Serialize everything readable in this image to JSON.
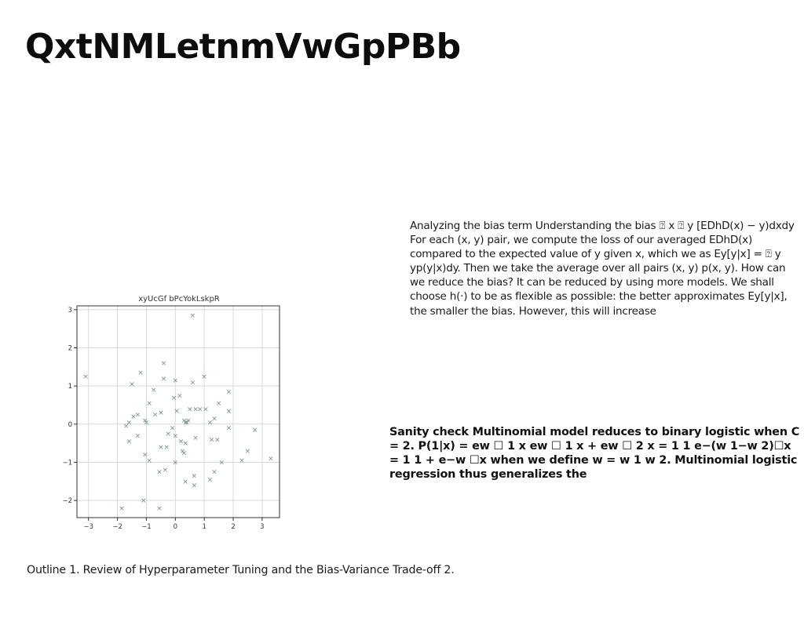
{
  "title": "QxtNMLetnmVwGpPBb",
  "paragraph_light": "Analyzing the bias term Understanding the bias ⍰ x ⍰ y [EDhD(x) − y)dxdy For each (x, y) pair, we compute the loss of our averaged EDhD(x) compared to the expected value of y given x, which we as Ey[y|x] = ⍰ y yp(y|x)dy. Then we take the average over all pairs (x, y) p(x, y). How can we reduce the bias? It can be reduced by using more models. We shall choose h(·) to be as flexible as possible: the better approximates Ey[y|x], the smaller the bias. However, this will increase",
  "paragraph_bold": "Sanity check Multinomial model reduces to binary logistic when C = 2. P(1|x) = ew ☐ 1 x ew ☐ 1 x + ew ☐ 2 x = 1 1 e−(w 1−w 2)☐x = 1 1 + e−w ☐x when we define w = w 1 w 2. Multinomial logistic regression thus generalizes the",
  "outline": "Outline 1. Review of Hyperparameter Tuning and the Bias-Variance Trade-off 2.",
  "chart_data": {
    "type": "scatter",
    "title": "xyUcGf bPcYokLskpR",
    "xlabel": "",
    "ylabel": "",
    "xlim": [
      -3.4,
      3.6
    ],
    "ylim": [
      -2.45,
      3.1
    ],
    "xticks": [
      -3,
      -2,
      -1,
      0,
      1,
      2,
      3
    ],
    "yticks": [
      -2,
      -1,
      0,
      1,
      2,
      3
    ],
    "grid": true,
    "marker": "x",
    "marker_color": "#6f8f80",
    "points": [
      [
        0.6,
        2.85
      ],
      [
        -0.4,
        1.6
      ],
      [
        -3.1,
        1.25
      ],
      [
        -1.2,
        1.35
      ],
      [
        -1.5,
        1.05
      ],
      [
        -0.4,
        1.2
      ],
      [
        0,
        1.15
      ],
      [
        0.6,
        1.1
      ],
      [
        1,
        1.25
      ],
      [
        1.85,
        0.85
      ],
      [
        -0.75,
        0.9
      ],
      [
        0.15,
        0.75
      ],
      [
        -0.05,
        0.7
      ],
      [
        1.5,
        0.55
      ],
      [
        -0.9,
        0.55
      ],
      [
        -0.5,
        0.3
      ],
      [
        0.05,
        0.35
      ],
      [
        0.5,
        0.4
      ],
      [
        0.7,
        0.4
      ],
      [
        0.85,
        0.4
      ],
      [
        1.05,
        0.4
      ],
      [
        1.85,
        0.35
      ],
      [
        -1.45,
        0.2
      ],
      [
        -1.3,
        0.25
      ],
      [
        -0.7,
        0.25
      ],
      [
        1.35,
        0.15
      ],
      [
        -1.05,
        0.1
      ],
      [
        -1,
        0.05
      ],
      [
        0.3,
        0.1
      ],
      [
        0.4,
        0.05
      ],
      [
        -1.6,
        0.05
      ],
      [
        -1.7,
        -0.05
      ],
      [
        0.45,
        0.1
      ],
      [
        0.35,
        0.05
      ],
      [
        -0.1,
        -0.1
      ],
      [
        1.2,
        0.05
      ],
      [
        1.85,
        -0.1
      ],
      [
        2.75,
        -0.15
      ],
      [
        -1.3,
        -0.3
      ],
      [
        -0.25,
        -0.25
      ],
      [
        0,
        -0.3
      ],
      [
        0.2,
        -0.45
      ],
      [
        0.35,
        -0.5
      ],
      [
        0.7,
        -0.35
      ],
      [
        1.25,
        -0.4
      ],
      [
        1.45,
        -0.4
      ],
      [
        -1.6,
        -0.45
      ],
      [
        -0.5,
        -0.6
      ],
      [
        -0.3,
        -0.6
      ],
      [
        0.25,
        -0.7
      ],
      [
        0.3,
        -0.75
      ],
      [
        -1.05,
        -0.8
      ],
      [
        -0.9,
        -0.95
      ],
      [
        0,
        -1
      ],
      [
        2.5,
        -0.7
      ],
      [
        2.3,
        -0.95
      ],
      [
        3.3,
        -0.9
      ],
      [
        1.6,
        -1
      ],
      [
        -0.55,
        -1.25
      ],
      [
        -0.35,
        -1.2
      ],
      [
        0.65,
        -1.35
      ],
      [
        1.35,
        -1.25
      ],
      [
        0.35,
        -1.5
      ],
      [
        1.2,
        -1.45
      ],
      [
        0.65,
        -1.6
      ],
      [
        -1.1,
        -2
      ],
      [
        -1.85,
        -2.2
      ],
      [
        -0.55,
        -2.2
      ]
    ]
  }
}
